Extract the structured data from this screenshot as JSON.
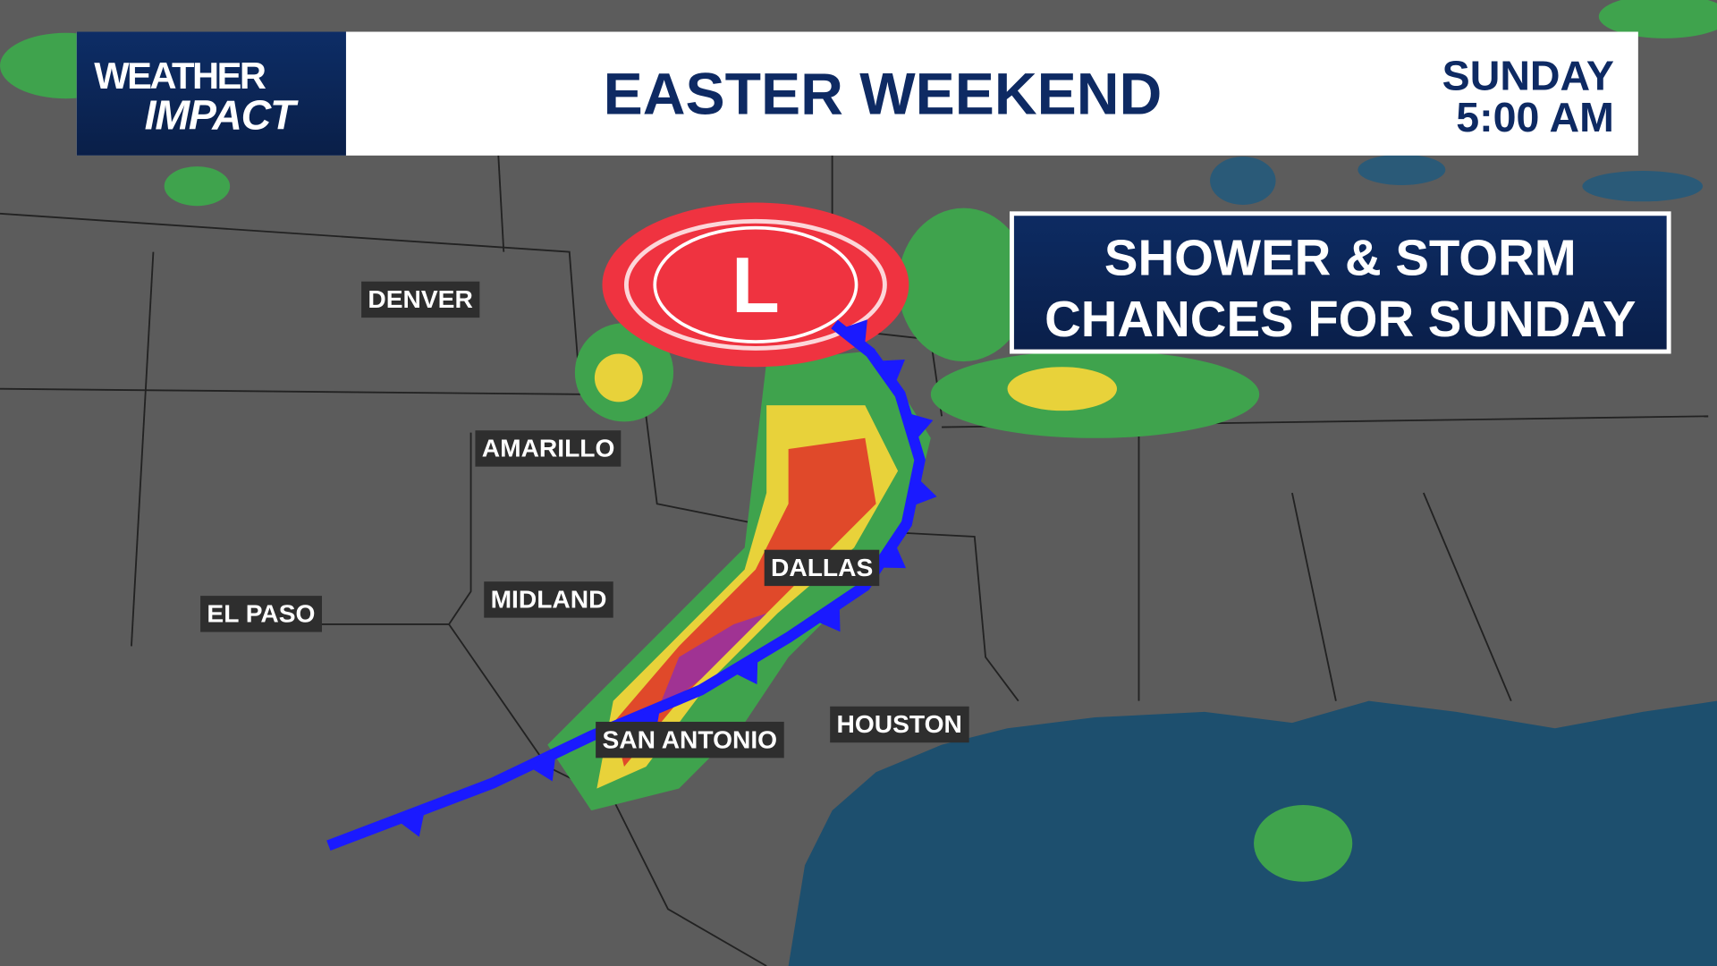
{
  "header": {
    "logo_line1": "WEATHER",
    "logo_line2": "IMPACT",
    "title": "EASTER WEEKEND",
    "day": "SUNDAY",
    "time": "5:00 AM"
  },
  "banner": {
    "line1": "SHOWER & STORM",
    "line2": "CHANCES FOR SUNDAY"
  },
  "low_pressure": {
    "label": "L",
    "color": "#ef3340"
  },
  "cold_front": {
    "color": "#1a1aff"
  },
  "cities": [
    {
      "name": "DENVER"
    },
    {
      "name": "AMARILLO"
    },
    {
      "name": "MIDLAND"
    },
    {
      "name": "EL PASO"
    },
    {
      "name": "DALLAS"
    },
    {
      "name": "SAN ANTONIO"
    },
    {
      "name": "HOUSTON"
    }
  ],
  "colors": {
    "land": "#5c5c5c",
    "water": "#1d4f6e",
    "header_blue": "#0e2a63"
  }
}
